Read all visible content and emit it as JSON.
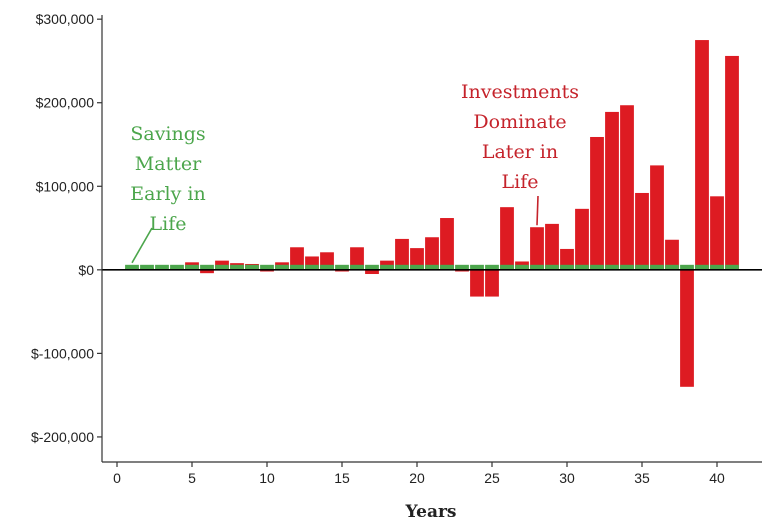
{
  "chart_data": {
    "type": "bar",
    "title": "",
    "xlabel": "Years",
    "ylabel": "",
    "xlim": [
      -1,
      43
    ],
    "ylim": [
      -230000,
      305000
    ],
    "x_ticks": [
      0,
      5,
      10,
      15,
      20,
      25,
      30,
      35,
      40
    ],
    "y_ticks": [
      -200000,
      -100000,
      0,
      100000,
      200000,
      300000
    ],
    "y_tick_labels": [
      "$-200,000",
      "$-100,000",
      "$0",
      "$100,000",
      "$200,000",
      "$300,000"
    ],
    "x": [
      1,
      2,
      3,
      4,
      5,
      6,
      7,
      8,
      9,
      10,
      11,
      12,
      13,
      14,
      15,
      16,
      17,
      18,
      19,
      20,
      21,
      22,
      23,
      24,
      25,
      26,
      27,
      28,
      29,
      30,
      31,
      32,
      33,
      34,
      35,
      36,
      37,
      38,
      39,
      40,
      41
    ],
    "series": [
      {
        "name": "Savings",
        "color": "#4ca64c",
        "values": [
          6000,
          6000,
          6000,
          6000,
          6000,
          6000,
          6000,
          6000,
          6000,
          6000,
          6000,
          6000,
          6000,
          6000,
          6000,
          6000,
          6000,
          6000,
          6000,
          6000,
          6000,
          6000,
          6000,
          6000,
          6000,
          6000,
          6000,
          6000,
          6000,
          6000,
          6000,
          6000,
          6000,
          6000,
          6000,
          6000,
          6000,
          6000,
          6000,
          6000,
          6000
        ]
      },
      {
        "name": "Investments",
        "color": "#dd1b22",
        "values": [
          2000,
          2000,
          1000,
          2000,
          9000,
          -4000,
          11000,
          8000,
          7000,
          -2000,
          9000,
          27000,
          16000,
          21000,
          -2000,
          27000,
          -5000,
          11000,
          37000,
          26000,
          39000,
          62000,
          -2000,
          -32000,
          -32000,
          75000,
          10000,
          51000,
          55000,
          25000,
          73000,
          159000,
          189000,
          197000,
          92000,
          125000,
          36000,
          -140000,
          275000,
          88000,
          256000
        ]
      }
    ],
    "legend": "none",
    "grid": false,
    "annotations": [
      {
        "lines": [
          "Savings",
          "Matter",
          "Early in",
          "Life"
        ],
        "color": "#4ca64c",
        "points_to": {
          "x": 1,
          "y": 6000
        }
      },
      {
        "lines": [
          "Investments",
          "Dominate",
          "Later in",
          "Life"
        ],
        "color": "#c5232b",
        "points_to": {
          "x": 28,
          "y": 51000
        }
      }
    ]
  }
}
